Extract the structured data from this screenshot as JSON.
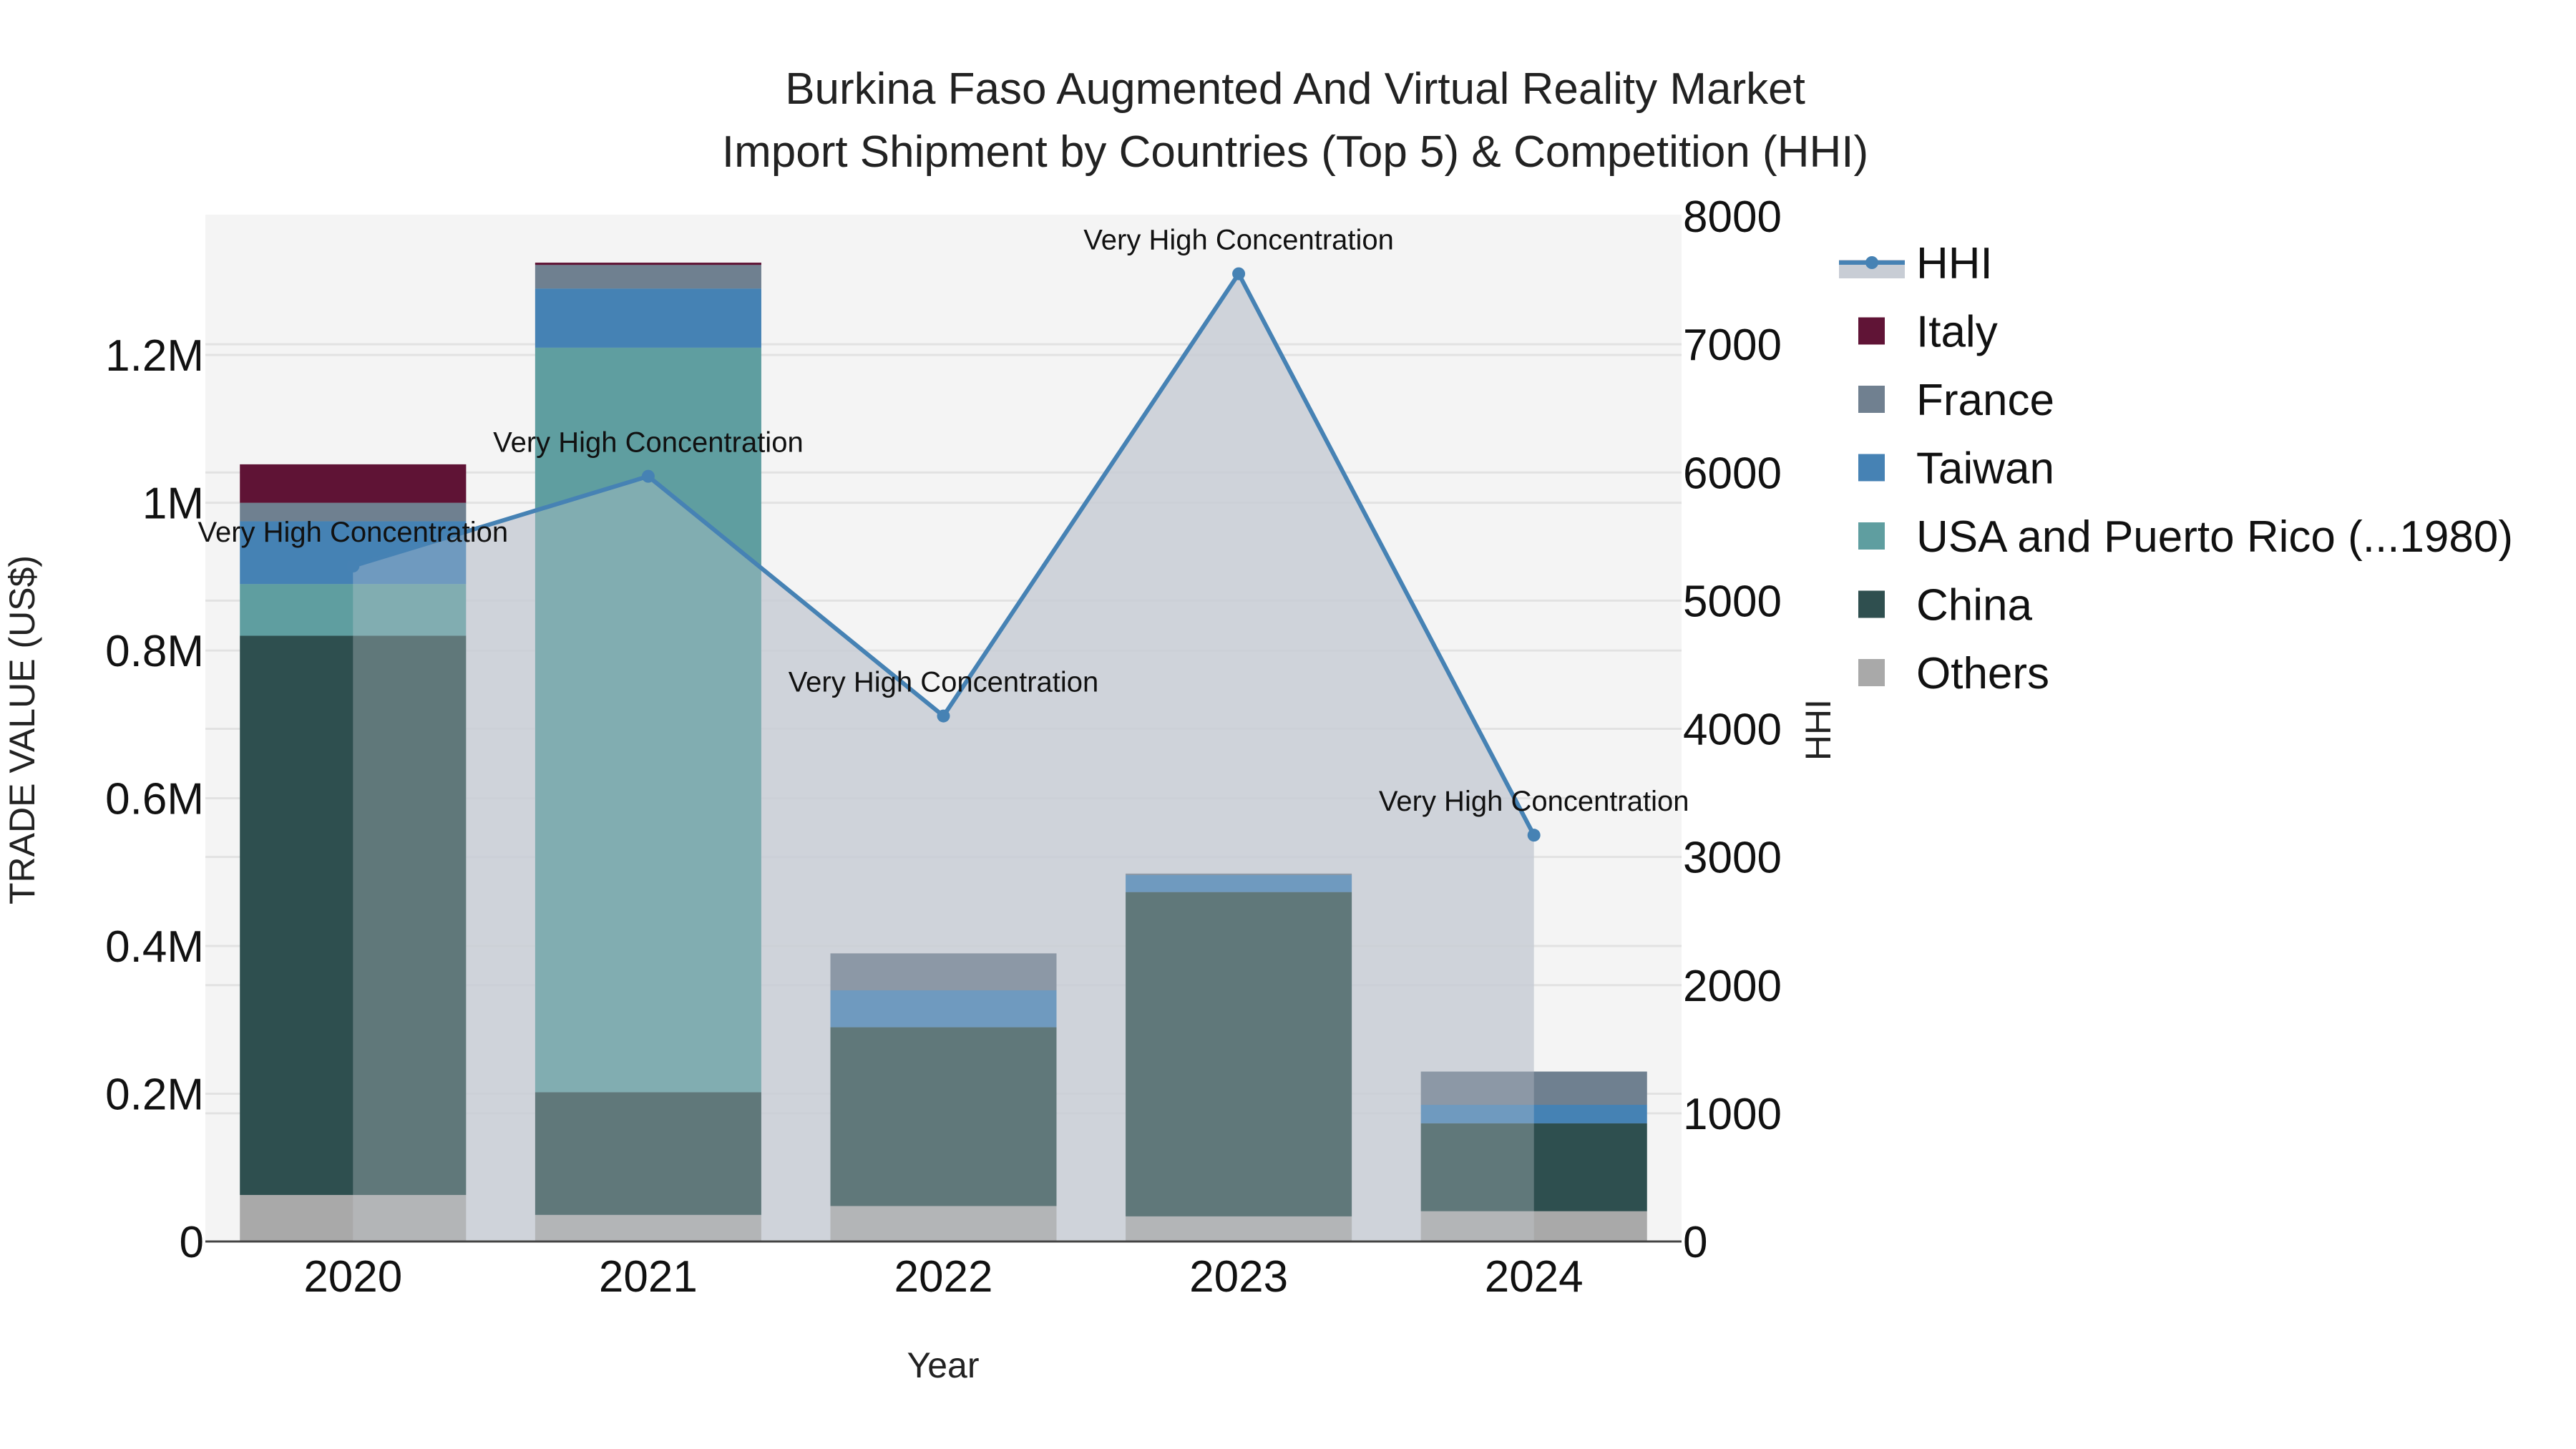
{
  "chart_data": {
    "type": "bar",
    "subtype": "stacked bar with HHI line/area on secondary axis",
    "title": "Burkina Faso Augmented And Virtual Reality Market",
    "subtitle": "Import Shipment by Countries (Top 5) & Competition (HHI)",
    "xlabel": "Year",
    "ylabel": "TRADE VALUE (US$)",
    "y2label": "HHI",
    "categories": [
      "2020",
      "2021",
      "2022",
      "2023",
      "2024"
    ],
    "ylim": [
      0,
      1390000
    ],
    "y_ticks": [
      0,
      200000,
      400000,
      600000,
      800000,
      1000000,
      1200000
    ],
    "y_tick_labels": [
      "0",
      "0.2M",
      "0.4M",
      "0.6M",
      "0.8M",
      "1M",
      "1.2M"
    ],
    "y2lim": [
      0,
      8000
    ],
    "y2_ticks": [
      0,
      1000,
      2000,
      3000,
      4000,
      5000,
      6000,
      7000,
      8000
    ],
    "y2_tick_labels": [
      "0",
      "1000",
      "2000",
      "3000",
      "4000",
      "5000",
      "6000",
      "7000",
      "8000"
    ],
    "grid": true,
    "legend_position": "right",
    "series": [
      {
        "name": "Others",
        "color": "#a9a9a9",
        "values": [
          63000,
          36000,
          48000,
          34000,
          41000
        ]
      },
      {
        "name": "China",
        "color": "#2f4f4f",
        "values": [
          757000,
          166000,
          242000,
          439000,
          119000
        ]
      },
      {
        "name": "USA and Puerto Rico (...1980)",
        "color": "#5f9ea0",
        "values": [
          70000,
          1008000,
          0,
          0,
          0
        ]
      },
      {
        "name": "Taiwan",
        "color": "#4682b4",
        "values": [
          85000,
          80000,
          50000,
          23000,
          25000
        ]
      },
      {
        "name": "France",
        "color": "#708090",
        "values": [
          25000,
          32000,
          50000,
          2000,
          45000
        ]
      },
      {
        "name": "Italy",
        "color": "#601436",
        "values": [
          52000,
          3000,
          0,
          0,
          0
        ]
      }
    ],
    "hhi": {
      "name": "HHI",
      "color": "#4682b4",
      "fill_color": "#c8cdd5",
      "values": [
        5270,
        5970,
        4100,
        7550,
        3170
      ],
      "annotations": [
        "Very High Concentration",
        "Very High Concentration",
        "Very High Concentration",
        "Very High Concentration",
        "Very High Concentration"
      ]
    }
  },
  "legend": {
    "items": [
      {
        "label": "HHI",
        "kind": "line",
        "color": "#4682b4"
      },
      {
        "label": "Italy",
        "kind": "box",
        "color": "#601436"
      },
      {
        "label": "France",
        "kind": "box",
        "color": "#708090"
      },
      {
        "label": "Taiwan",
        "kind": "box",
        "color": "#4682b4"
      },
      {
        "label": "USA and Puerto Rico (...1980)",
        "kind": "box",
        "color": "#5f9ea0"
      },
      {
        "label": "China",
        "kind": "box",
        "color": "#2f4f4f"
      },
      {
        "label": "Others",
        "kind": "box",
        "color": "#a9a9a9"
      }
    ]
  },
  "colors": {
    "plot_bg": "#f4f4f4",
    "grid": "#e2e2e2",
    "axis_line": "#444444"
  }
}
